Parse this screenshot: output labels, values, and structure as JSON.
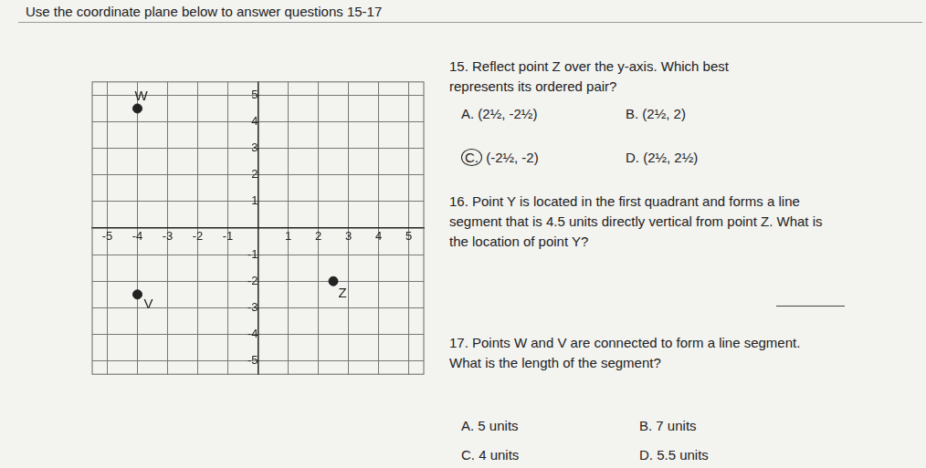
{
  "header": {
    "instruction": "Use the coordinate plane below to answer questions 15-17"
  },
  "chart_data": {
    "type": "scatter",
    "points": [
      {
        "label": "W",
        "x": -4,
        "y": 4.5
      },
      {
        "label": "V",
        "x": -4,
        "y": -2.5
      },
      {
        "label": "Z",
        "x": 2.5,
        "y": -2
      }
    ],
    "color": "#222222",
    "xlim": [
      -5.5,
      5.5
    ],
    "ylim": [
      -5.5,
      5.5
    ],
    "xticks": [
      -5,
      -4,
      -3,
      -2,
      -1,
      1,
      2,
      3,
      4,
      5
    ],
    "yticks": [
      -5,
      -4,
      -3,
      -2,
      -1,
      1,
      2,
      3,
      4,
      5
    ],
    "grid": true
  },
  "questions": [
    {
      "text": "15. Reflect point Z over the y-axis. Which best represents its ordered pair?",
      "choices": [
        {
          "letter": "A.",
          "text": "(2½, -2½)"
        },
        {
          "letter": "B.",
          "text": "(2½, 2)"
        },
        {
          "letter": "C.",
          "text": "(-2½, -2)"
        },
        {
          "letter": "D.",
          "text": "(2½, 2½)"
        }
      ],
      "marked": "C."
    },
    {
      "text": "16. Point Y is located in the first quadrant and forms a line segment that is 4.5 units directly vertical from point Z. What is the location of point Y?"
    },
    {
      "text": "17. Points W and V are connected to form a line segment. What is the length of the segment?",
      "choices": [
        {
          "letter": "A.",
          "text": "5 units"
        },
        {
          "letter": "B.",
          "text": "7 units"
        },
        {
          "letter": "C.",
          "text": "4 units"
        },
        {
          "letter": "D.",
          "text": "5.5 units"
        }
      ]
    }
  ]
}
